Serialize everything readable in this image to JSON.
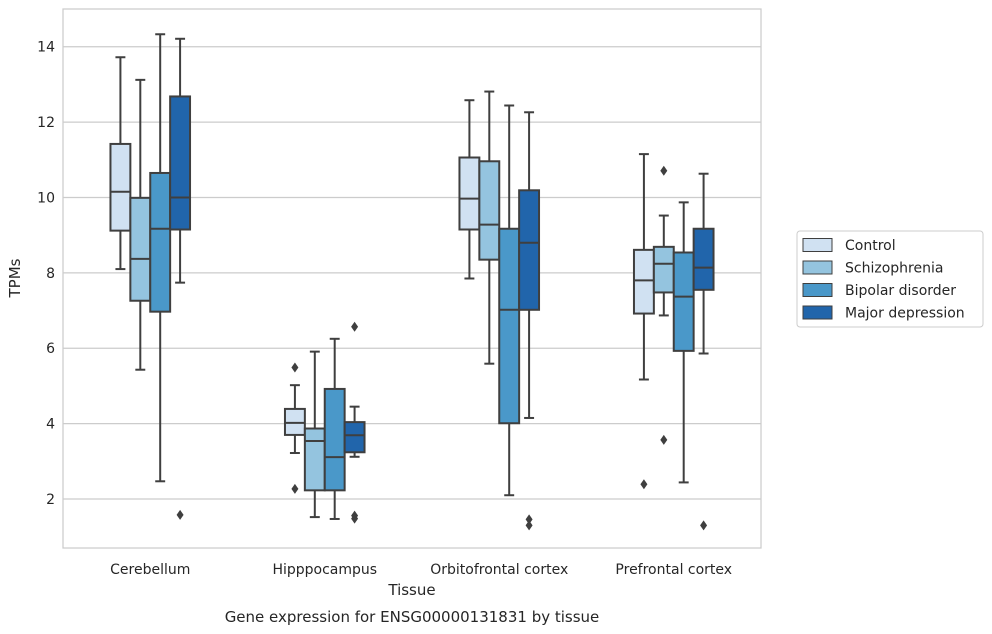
{
  "chart_data": {
    "type": "box",
    "title": "",
    "caption": "Gene expression for ENSG00000131831 by tissue",
    "xlabel": "Tissue",
    "ylabel": "TPMs",
    "ylim": [
      0.7,
      15.0
    ],
    "yticks": [
      2,
      4,
      6,
      8,
      10,
      12,
      14
    ],
    "grid": "horizontal",
    "legend_position": "right",
    "categories": [
      "Cerebellum",
      "Hipppocampus",
      "Orbitofrontal cortex",
      "Prefrontal cortex"
    ],
    "series": [
      {
        "name": "Control",
        "color": "#d0e1f2",
        "boxes": [
          {
            "whisker_low": 8.1,
            "q1": 9.12,
            "median": 10.15,
            "q3": 11.42,
            "whisker_high": 13.72,
            "outliers": []
          },
          {
            "whisker_low": 3.22,
            "q1": 3.7,
            "median": 4.02,
            "q3": 4.39,
            "whisker_high": 5.02,
            "outliers": [
              5.49,
              2.27
            ]
          },
          {
            "whisker_low": 7.85,
            "q1": 9.15,
            "median": 9.97,
            "q3": 11.06,
            "whisker_high": 12.58,
            "outliers": []
          },
          {
            "whisker_low": 5.17,
            "q1": 6.92,
            "median": 7.8,
            "q3": 8.61,
            "whisker_high": 11.15,
            "outliers": [
              2.39
            ]
          }
        ]
      },
      {
        "name": "Schizophrenia",
        "color": "#94c4df",
        "boxes": [
          {
            "whisker_low": 5.43,
            "q1": 7.26,
            "median": 8.37,
            "q3": 9.99,
            "whisker_high": 13.12,
            "outliers": []
          },
          {
            "whisker_low": 1.52,
            "q1": 2.23,
            "median": 3.54,
            "q3": 3.87,
            "whisker_high": 5.91,
            "outliers": []
          },
          {
            "whisker_low": 5.59,
            "q1": 8.35,
            "median": 9.28,
            "q3": 10.96,
            "whisker_high": 12.81,
            "outliers": []
          },
          {
            "whisker_low": 6.87,
            "q1": 7.48,
            "median": 8.24,
            "q3": 8.69,
            "whisker_high": 9.52,
            "outliers": [
              10.71,
              3.57
            ]
          }
        ]
      },
      {
        "name": "Bipolar disorder",
        "color": "#4a98c9",
        "boxes": [
          {
            "whisker_low": 2.47,
            "q1": 6.97,
            "median": 9.17,
            "q3": 10.65,
            "whisker_high": 14.33,
            "outliers": []
          },
          {
            "whisker_low": 1.47,
            "q1": 2.23,
            "median": 3.11,
            "q3": 4.92,
            "whisker_high": 6.25,
            "outliers": []
          },
          {
            "whisker_low": 2.1,
            "q1": 4.01,
            "median": 7.02,
            "q3": 9.17,
            "whisker_high": 12.44,
            "outliers": []
          },
          {
            "whisker_low": 2.44,
            "q1": 5.93,
            "median": 7.37,
            "q3": 8.54,
            "whisker_high": 9.87,
            "outliers": []
          }
        ]
      },
      {
        "name": "Major depression",
        "color": "#2165ab",
        "boxes": [
          {
            "whisker_low": 7.74,
            "q1": 9.15,
            "median": 10.0,
            "q3": 12.68,
            "whisker_high": 14.21,
            "outliers": [
              1.58
            ]
          },
          {
            "whisker_low": 3.12,
            "q1": 3.24,
            "median": 3.69,
            "q3": 4.04,
            "whisker_high": 4.45,
            "outliers": [
              6.57,
              1.56,
              1.48
            ]
          },
          {
            "whisker_low": 4.15,
            "q1": 7.02,
            "median": 8.8,
            "q3": 10.19,
            "whisker_high": 12.26,
            "outliers": [
              1.46,
              1.3
            ]
          },
          {
            "whisker_low": 5.86,
            "q1": 7.55,
            "median": 8.14,
            "q3": 9.17,
            "whisker_high": 10.63,
            "outliers": [
              1.3
            ]
          }
        ]
      }
    ]
  }
}
